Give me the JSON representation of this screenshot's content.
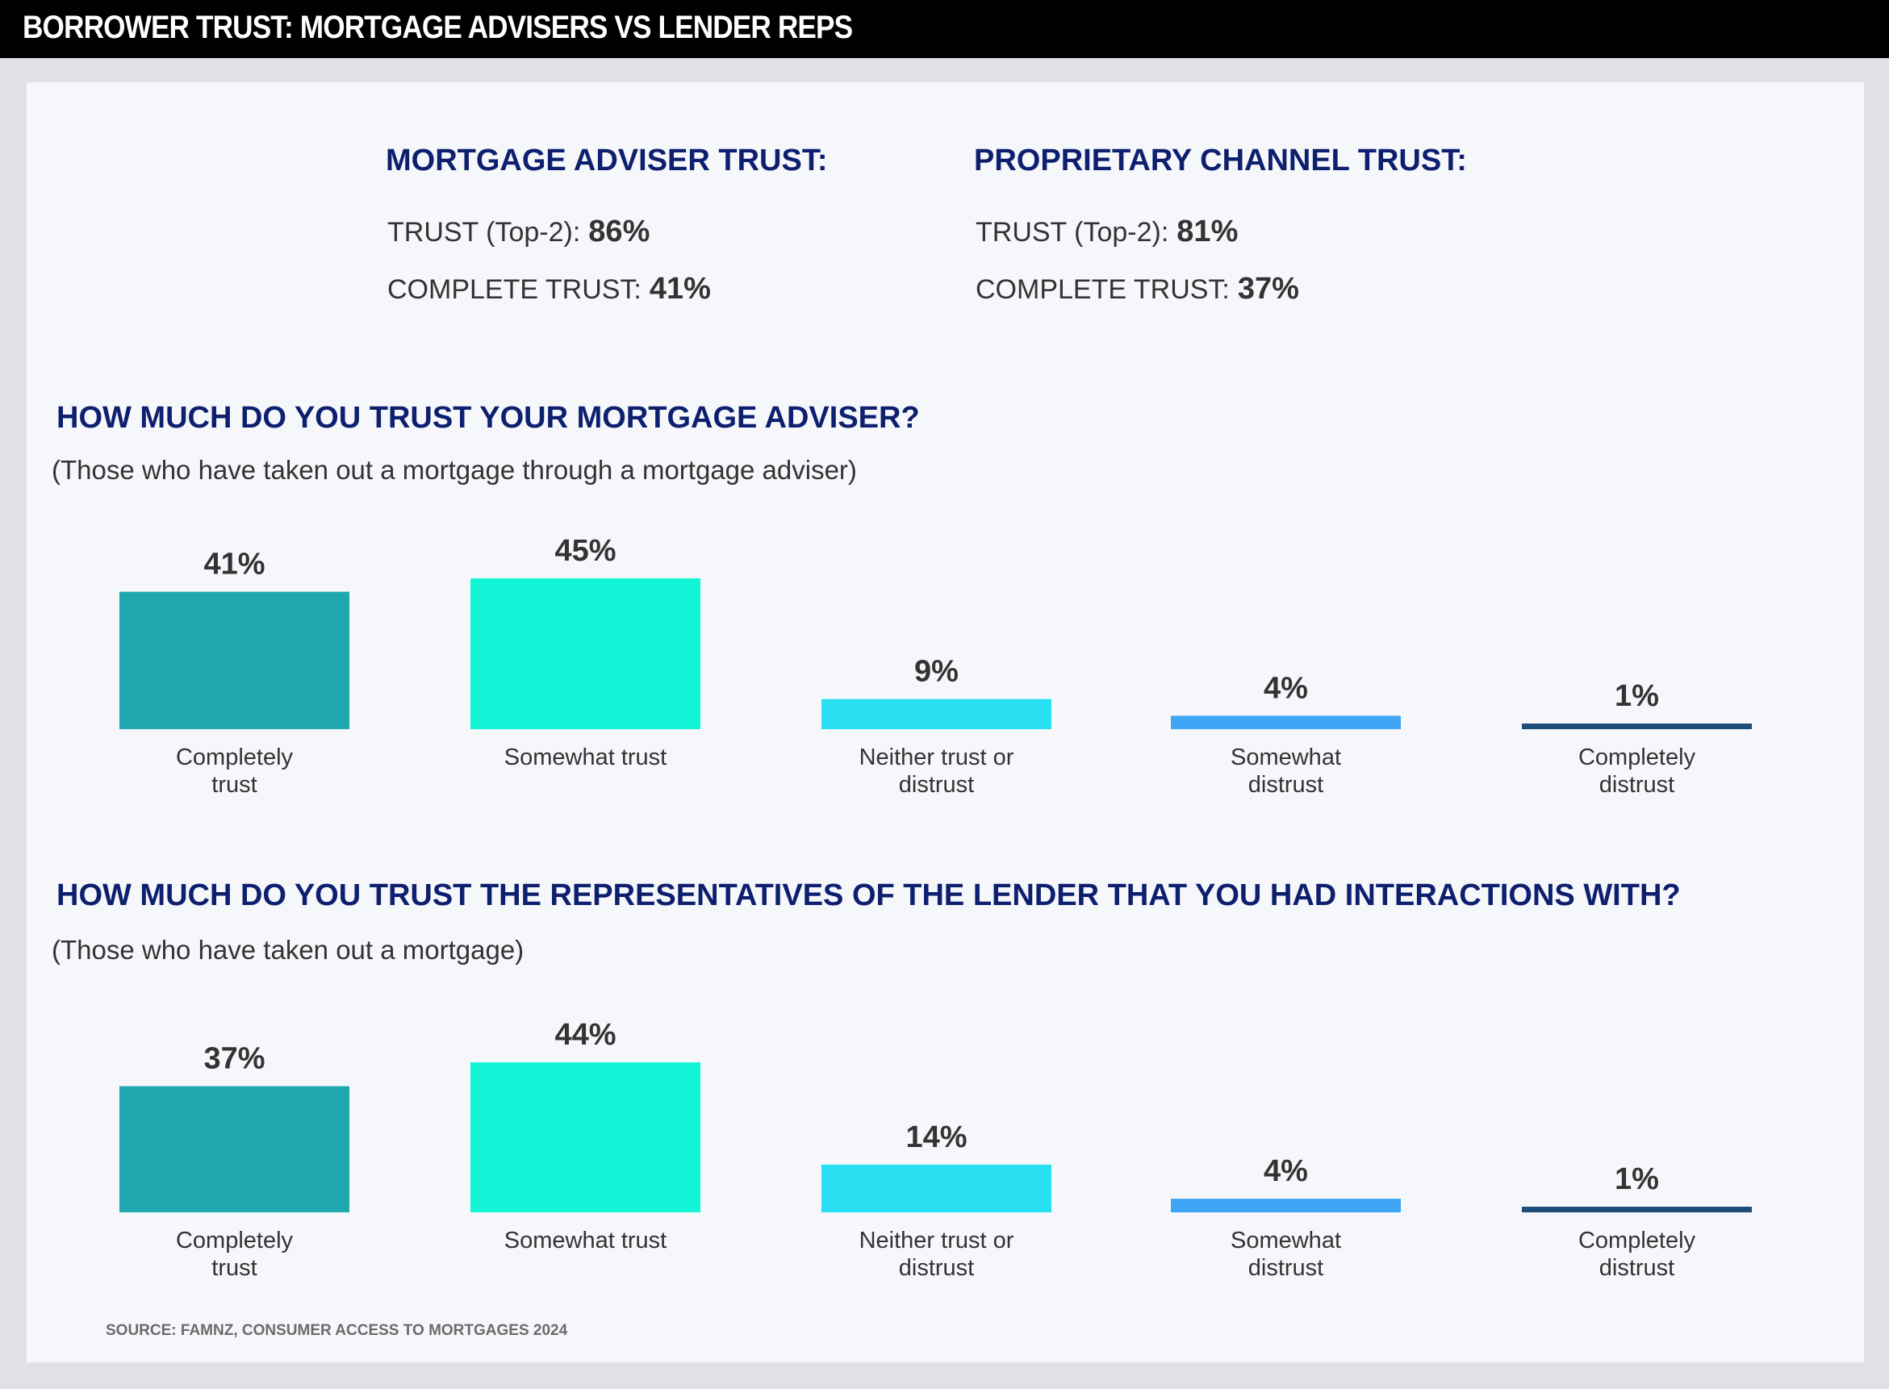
{
  "title": "BORROWER TRUST: MORTGAGE ADVISERS VS LENDER REPS",
  "summary": {
    "adviser": {
      "heading": "MORTGAGE ADVISER TRUST:",
      "trust_label": "TRUST (Top-2):",
      "trust_value": "86%",
      "complete_label": "COMPLETE TRUST:",
      "complete_value": "41%"
    },
    "proprietary": {
      "heading": "PROPRIETARY CHANNEL TRUST:",
      "trust_label": "TRUST (Top-2):",
      "trust_value": "81%",
      "complete_label": "COMPLETE TRUST:",
      "complete_value": "37%"
    }
  },
  "source": "SOURCE: FAMNZ, CONSUMER ACCESS TO MORTGAGES 2024",
  "chart_data": [
    {
      "type": "bar",
      "title": "HOW MUCH DO YOU TRUST YOUR MORTGAGE ADVISER?",
      "subtitle": "(Those who have taken out a mortgage through a mortgage adviser)",
      "categories": [
        [
          "Completely",
          "trust"
        ],
        [
          "Somewhat trust"
        ],
        [
          "Neither trust or",
          "distrust"
        ],
        [
          "Somewhat",
          "distrust"
        ],
        [
          "Completely",
          "distrust"
        ]
      ],
      "values": [
        41,
        45,
        9,
        4,
        1
      ],
      "value_labels": [
        "41%",
        "45%",
        "9%",
        "4%",
        "1%"
      ],
      "colors": [
        "#1fa8b0",
        "#14f5d8",
        "#28e0f2",
        "#3ea6f5",
        "#1d4e7a"
      ],
      "ylim": [
        0,
        45
      ]
    },
    {
      "type": "bar",
      "title": "HOW MUCH DO YOU TRUST THE REPRESENTATIVES OF THE LENDER THAT YOU HAD INTERACTIONS WITH?",
      "subtitle": "(Those who have taken out a mortgage)",
      "categories": [
        [
          "Completely",
          "trust"
        ],
        [
          "Somewhat trust"
        ],
        [
          "Neither trust or",
          "distrust"
        ],
        [
          "Somewhat",
          "distrust"
        ],
        [
          "Completely",
          "distrust"
        ]
      ],
      "values": [
        37,
        44,
        14,
        4,
        1
      ],
      "value_labels": [
        "37%",
        "44%",
        "14%",
        "4%",
        "1%"
      ],
      "colors": [
        "#1fa8b0",
        "#14f5d8",
        "#28e0f2",
        "#3ea6f5",
        "#1d4e7a"
      ],
      "ylim": [
        0,
        44
      ]
    }
  ]
}
